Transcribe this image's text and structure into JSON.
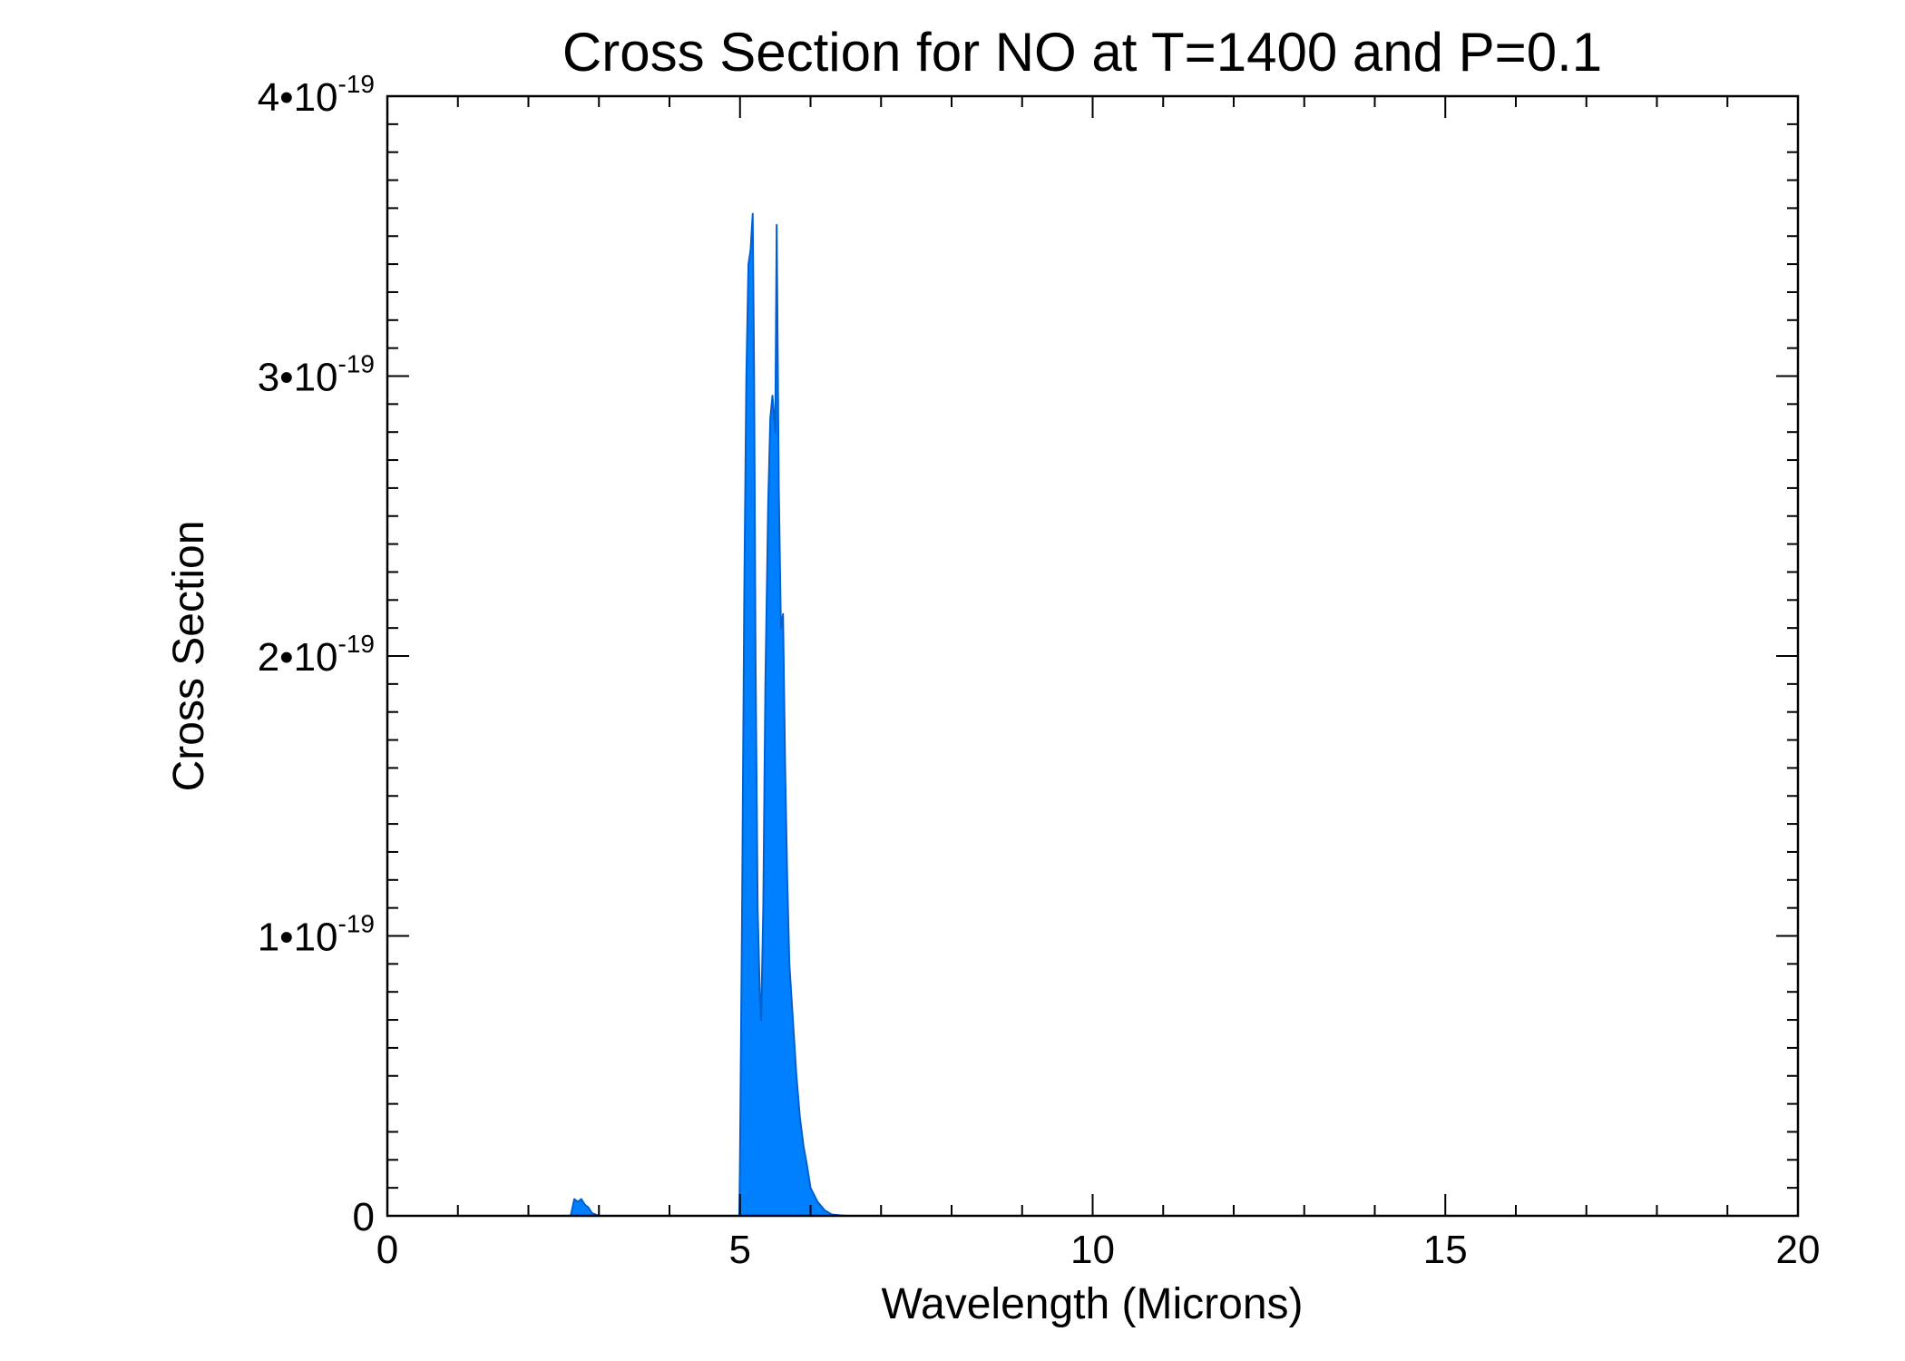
{
  "chart_data": {
    "type": "area",
    "title": "Cross Section for NO at T=1400 and P=0.1",
    "xlabel": "Wavelength (Microns)",
    "ylabel": "Cross Section",
    "xlim": [
      0,
      20
    ],
    "ylim": [
      0,
      4e-19
    ],
    "x_ticks": [
      0,
      5,
      10,
      15,
      20
    ],
    "x_tick_labels": [
      "0",
      "5",
      "10",
      "15",
      "20"
    ],
    "y_ticks": [
      0,
      1e-19,
      2e-19,
      3e-19,
      4e-19
    ],
    "y_tick_labels": [
      {
        "mantissa": "0",
        "exponent": ""
      },
      {
        "mantissa": "1•10",
        "exponent": "-19"
      },
      {
        "mantissa": "2•10",
        "exponent": "-19"
      },
      {
        "mantissa": "3•10",
        "exponent": "-19"
      },
      {
        "mantissa": "4•10",
        "exponent": "-19"
      }
    ],
    "grid": false,
    "fill_color": "#0080ff",
    "line_color": "#0060d0",
    "series": [
      {
        "x": [
          0,
          2.6,
          2.65,
          2.7,
          2.75,
          2.8,
          2.85,
          2.9,
          3.0,
          4.99,
          5.0,
          5.03,
          5.06,
          5.09,
          5.12,
          5.15,
          5.18,
          5.2,
          5.22,
          5.25,
          5.28,
          5.3,
          5.33,
          5.36,
          5.4,
          5.43,
          5.46,
          5.5,
          5.52,
          5.55,
          5.58,
          5.61,
          5.64,
          5.67,
          5.7,
          5.75,
          5.8,
          5.85,
          5.9,
          5.95,
          6.0,
          6.1,
          6.2,
          6.3,
          6.5,
          20
        ],
        "y": [
          0,
          0,
          6e-21,
          5e-21,
          6e-21,
          4e-21,
          3e-21,
          1e-21,
          0,
          0,
          2e-20,
          1.1e-19,
          2.2e-19,
          3e-19,
          3.4e-19,
          3.45e-19,
          3.58e-19,
          3e-19,
          2e-19,
          1.1e-19,
          8e-20,
          7e-20,
          1.1e-19,
          1.9e-19,
          2.55e-19,
          2.85e-19,
          2.93e-19,
          2.8e-19,
          3.54e-19,
          2.6e-19,
          2.1e-19,
          2.15e-19,
          1.6e-19,
          1.2e-19,
          9e-20,
          7e-20,
          5e-20,
          3.5e-20,
          2.5e-20,
          1.8e-20,
          1e-20,
          5e-21,
          2e-21,
          5e-22,
          0,
          0
        ]
      }
    ]
  }
}
